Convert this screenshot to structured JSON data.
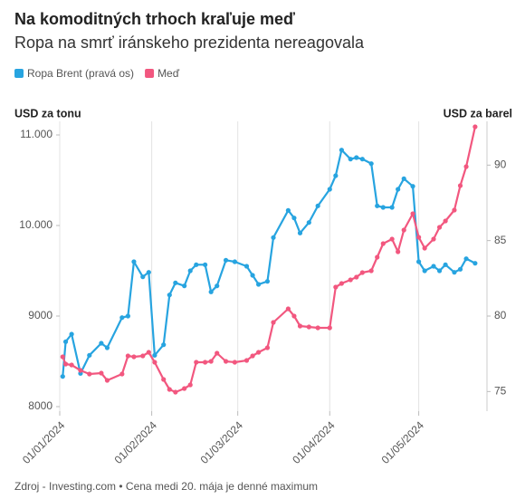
{
  "chart_data": {
    "type": "line",
    "title": "Na komoditných trhoch kraľuje meď",
    "subtitle": "Ropa na smrť iránskeho prezidenta nereagovala",
    "y_label": "USD za tonu",
    "y2_label": "USD za barel",
    "footnote": "Zdroj - Investing.com • Cena medi 20. mája je denné maximum",
    "x": [
      "2024-01-02",
      "2024-01-03",
      "2024-01-05",
      "2024-01-08",
      "2024-01-11",
      "2024-01-15",
      "2024-01-17",
      "2024-01-22",
      "2024-01-24",
      "2024-01-26",
      "2024-01-29",
      "2024-01-31",
      "2024-02-02",
      "2024-02-05",
      "2024-02-07",
      "2024-02-09",
      "2024-02-12",
      "2024-02-14",
      "2024-02-16",
      "2024-02-19",
      "2024-02-21",
      "2024-02-23",
      "2024-02-26",
      "2024-02-29",
      "2024-03-04",
      "2024-03-06",
      "2024-03-08",
      "2024-03-11",
      "2024-03-13",
      "2024-03-18",
      "2024-03-20",
      "2024-03-22",
      "2024-03-25",
      "2024-03-28",
      "2024-04-01",
      "2024-04-03",
      "2024-04-05",
      "2024-04-08",
      "2024-04-10",
      "2024-04-12",
      "2024-04-15",
      "2024-04-17",
      "2024-04-19",
      "2024-04-22",
      "2024-04-24",
      "2024-04-26",
      "2024-04-29",
      "2024-05-01",
      "2024-05-03",
      "2024-05-06",
      "2024-05-08",
      "2024-05-10",
      "2024-05-13",
      "2024-05-15",
      "2024-05-17",
      "2024-05-20"
    ],
    "series": [
      {
        "name": "Ropa Brent (pravá os)",
        "color": "#27a4e0",
        "axis": "y2",
        "values": [
          76.0,
          78.3,
          78.8,
          76.2,
          77.4,
          78.2,
          77.9,
          79.9,
          80.0,
          83.6,
          82.6,
          82.9,
          77.4,
          78.1,
          81.4,
          82.2,
          82.0,
          83.0,
          83.4,
          83.4,
          81.6,
          82.0,
          83.7,
          83.6,
          83.3,
          82.7,
          82.1,
          82.3,
          85.2,
          87.0,
          86.5,
          85.5,
          86.2,
          87.3,
          88.4,
          89.3,
          91.0,
          90.4,
          90.5,
          90.4,
          90.1,
          87.3,
          87.2,
          87.2,
          88.4,
          89.1,
          88.6,
          83.6,
          83.0,
          83.3,
          83.0,
          83.4,
          82.9,
          83.1,
          83.8,
          83.5
        ]
      },
      {
        "name": "Meď",
        "color": "#f2577f",
        "values": [
          8550,
          8470,
          8460,
          8400,
          8360,
          8370,
          8290,
          8360,
          8560,
          8550,
          8560,
          8600,
          8490,
          8300,
          8190,
          8160,
          8200,
          8240,
          8490,
          8490,
          8500,
          8590,
          8500,
          8490,
          8510,
          8560,
          8600,
          8650,
          8930,
          9080,
          9000,
          8890,
          8880,
          8870,
          8870,
          9320,
          9360,
          9400,
          9430,
          9480,
          9500,
          9650,
          9800,
          9850,
          9710,
          9950,
          10130,
          9870,
          9750,
          9850,
          9980,
          10050,
          10170,
          10440,
          10650,
          11090
        ]
      }
    ],
    "xlim": [
      "2024-01-01",
      "2024-05-24"
    ],
    "xticks": [
      {
        "value": "2024-01-01",
        "label": "01/01/2024"
      },
      {
        "value": "2024-02-01",
        "label": "01/02/2024"
      },
      {
        "value": "2024-03-01",
        "label": "01/03/2024"
      },
      {
        "value": "2024-04-01",
        "label": "01/04/2024"
      },
      {
        "value": "2024-05-01",
        "label": "01/05/2024"
      }
    ],
    "ylim": [
      7950,
      11150
    ],
    "yticks": [
      8000,
      9000,
      {
        "value": 10000,
        "label": "10.000"
      },
      {
        "value": 11000,
        "label": "11.000"
      }
    ],
    "y2lim": [
      73.7,
      92.9
    ],
    "y2ticks": [
      75,
      80,
      85,
      90
    ],
    "grid": true
  }
}
